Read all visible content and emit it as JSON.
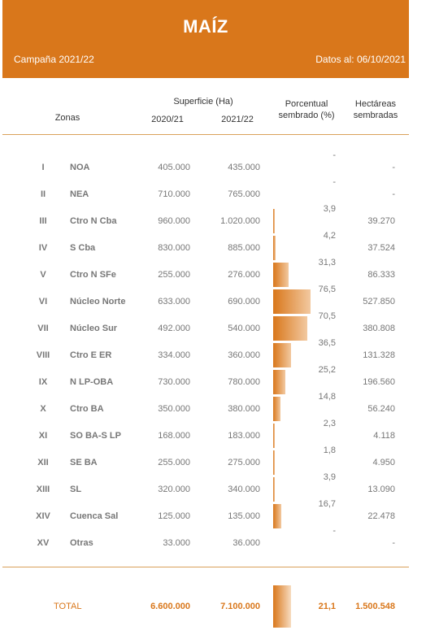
{
  "header": {
    "title": "MAÍZ",
    "campaign": "Campaña 2021/22",
    "date": "Datos al: 06/10/2021"
  },
  "columns": {
    "zonas": "Zonas",
    "superficie": "Superficie (Ha)",
    "year1": "2020/21",
    "year2": "2021/22",
    "porcentual_1": "Porcentual",
    "porcentual_2": "sembrado (%)",
    "hectareas_1": "Hectáreas",
    "hectareas_2": "sembradas"
  },
  "rows": [
    {
      "roman": "I",
      "zone": "NOA",
      "s2020": "405.000",
      "s2021": "435.000",
      "pct": "-",
      "pct_value": 0,
      "ha": "-"
    },
    {
      "roman": "II",
      "zone": "NEA",
      "s2020": "710.000",
      "s2021": "765.000",
      "pct": "-",
      "pct_value": 0,
      "ha": "-"
    },
    {
      "roman": "III",
      "zone": "Ctro N Cba",
      "s2020": "960.000",
      "s2021": "1.020.000",
      "pct": "3,9",
      "pct_value": 3.9,
      "ha": "39.270"
    },
    {
      "roman": "IV",
      "zone": "S Cba",
      "s2020": "830.000",
      "s2021": "885.000",
      "pct": "4,2",
      "pct_value": 4.2,
      "ha": "37.524"
    },
    {
      "roman": "V",
      "zone": "Ctro N SFe",
      "s2020": "255.000",
      "s2021": "276.000",
      "pct": "31,3",
      "pct_value": 31.3,
      "ha": "86.333"
    },
    {
      "roman": "VI",
      "zone": "Núcleo Norte",
      "s2020": "633.000",
      "s2021": "690.000",
      "pct": "76,5",
      "pct_value": 76.5,
      "ha": "527.850"
    },
    {
      "roman": "VII",
      "zone": "Núcleo Sur",
      "s2020": "492.000",
      "s2021": "540.000",
      "pct": "70,5",
      "pct_value": 70.5,
      "ha": "380.808"
    },
    {
      "roman": "VIII",
      "zone": "Ctro E ER",
      "s2020": "334.000",
      "s2021": "360.000",
      "pct": "36,5",
      "pct_value": 36.5,
      "ha": "131.328"
    },
    {
      "roman": "IX",
      "zone": "N LP-OBA",
      "s2020": "730.000",
      "s2021": "780.000",
      "pct": "25,2",
      "pct_value": 25.2,
      "ha": "196.560"
    },
    {
      "roman": "X",
      "zone": "Ctro BA",
      "s2020": "350.000",
      "s2021": "380.000",
      "pct": "14,8",
      "pct_value": 14.8,
      "ha": "56.240"
    },
    {
      "roman": "XI",
      "zone": "SO BA-S LP",
      "s2020": "168.000",
      "s2021": "183.000",
      "pct": "2,3",
      "pct_value": 2.3,
      "ha": "4.118"
    },
    {
      "roman": "XII",
      "zone": "SE BA",
      "s2020": "255.000",
      "s2021": "275.000",
      "pct": "1,8",
      "pct_value": 1.8,
      "ha": "4.950"
    },
    {
      "roman": "XIII",
      "zone": "SL",
      "s2020": "320.000",
      "s2021": "340.000",
      "pct": "3,9",
      "pct_value": 3.9,
      "ha": "13.090"
    },
    {
      "roman": "XIV",
      "zone": "Cuenca Sal",
      "s2020": "125.000",
      "s2021": "135.000",
      "pct": "16,7",
      "pct_value": 16.7,
      "ha": "22.478"
    },
    {
      "roman": "XV",
      "zone": "Otras",
      "s2020": "33.000",
      "s2021": "36.000",
      "pct": "-",
      "pct_value": 0,
      "ha": "-"
    }
  ],
  "total": {
    "label": "TOTAL",
    "s2020": "6.600.000",
    "s2021": "7.100.000",
    "pct": "21,1",
    "pct_value": 21.1,
    "ha": "1.500.548"
  },
  "colors": {
    "accent": "#d9771b",
    "text": "#777777"
  }
}
